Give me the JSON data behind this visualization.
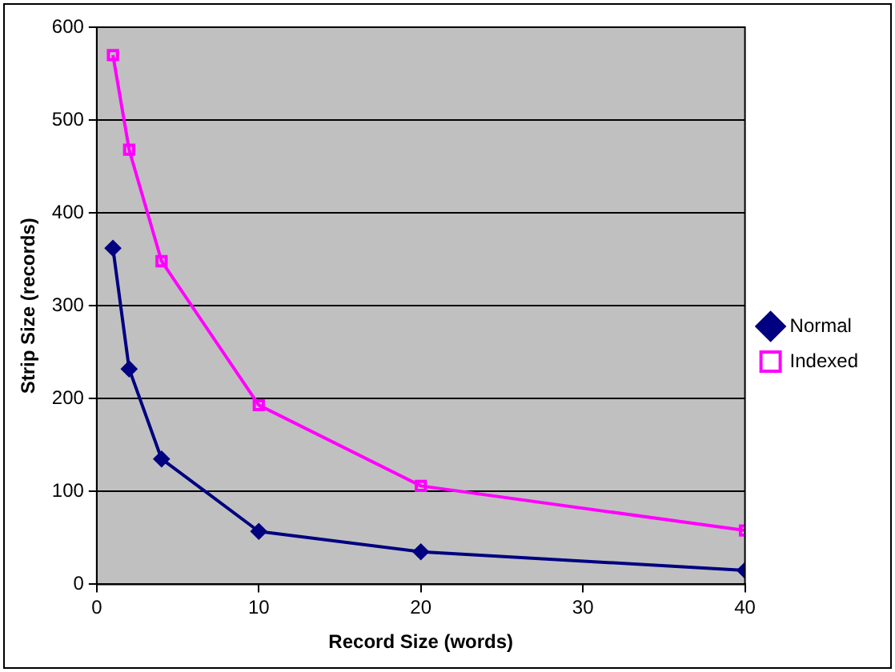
{
  "chart_data": {
    "type": "line",
    "xlabel": "Record Size (words)",
    "ylabel": "Strip Size (records)",
    "x": [
      1,
      2,
      4,
      10,
      20,
      40
    ],
    "series": [
      {
        "name": "Normal",
        "color": "#000080",
        "marker": "diamond",
        "values": [
          362,
          232,
          135,
          57,
          35,
          15
        ]
      },
      {
        "name": "Indexed",
        "color": "#ff00ff",
        "marker": "square",
        "values": [
          570,
          468,
          348,
          193,
          106,
          58
        ]
      }
    ],
    "xlim": [
      0,
      40
    ],
    "xticks": [
      0,
      10,
      20,
      30,
      40
    ],
    "ylim": [
      0,
      600
    ],
    "yticks": [
      0,
      100,
      200,
      300,
      400,
      500,
      600
    ],
    "grid": "y",
    "legend": "right",
    "line_style": "solid"
  }
}
